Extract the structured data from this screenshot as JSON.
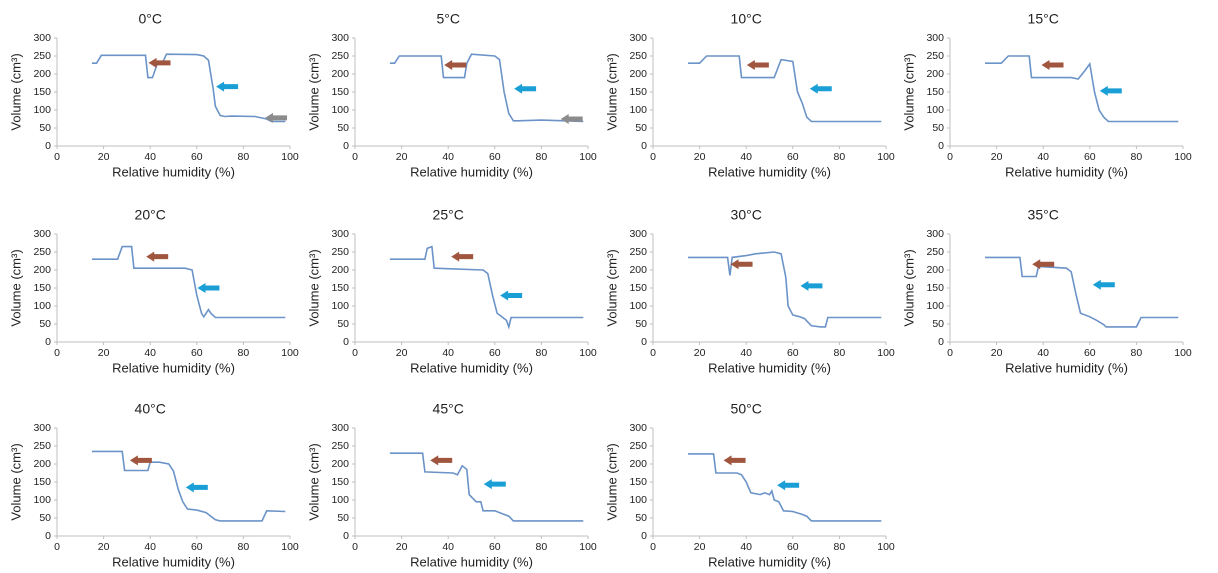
{
  "chart_data": [
    {
      "type": "line",
      "title": "0°C",
      "x_label": "Relative humidity (%)",
      "y_label": "Volume (cm³)",
      "xlim": [
        0,
        100
      ],
      "ylim": [
        0,
        300
      ],
      "xticks": [
        0,
        20,
        40,
        60,
        80,
        100
      ],
      "yticks": [
        0,
        50,
        100,
        150,
        200,
        250,
        300
      ],
      "x": [
        15,
        17,
        19,
        38,
        39,
        41,
        43,
        45,
        47,
        60,
        63,
        65,
        67,
        68,
        70,
        72,
        75,
        85,
        90,
        92,
        98
      ],
      "series": [
        {
          "color": "#6b93c8",
          "values": [
            230,
            230,
            252,
            252,
            190,
            190,
            228,
            228,
            255,
            254,
            250,
            238,
            160,
            110,
            85,
            82,
            83,
            82,
            75,
            68,
            68
          ]
        }
      ]
    },
    {
      "type": "line",
      "title": "5°C",
      "x_label": "Relative humidity (%)",
      "y_label": "Volume (cm³)",
      "xlim": [
        0,
        100
      ],
      "ylim": [
        0,
        300
      ],
      "xticks": [
        0,
        20,
        40,
        60,
        80,
        100
      ],
      "yticks": [
        0,
        50,
        100,
        150,
        200,
        250,
        300
      ],
      "x": [
        15,
        17,
        19,
        37,
        38,
        47,
        48,
        50,
        60,
        62,
        64,
        66,
        68,
        70,
        80,
        90,
        98
      ],
      "series": [
        {
          "color": "#6b93c8",
          "values": [
            230,
            230,
            250,
            250,
            190,
            190,
            230,
            255,
            250,
            240,
            150,
            90,
            70,
            70,
            72,
            70,
            68
          ]
        }
      ]
    },
    {
      "type": "line",
      "title": "10°C",
      "x_label": "Relative humidity (%)",
      "y_label": "Volume (cm³)",
      "xlim": [
        0,
        100
      ],
      "ylim": [
        0,
        300
      ],
      "xticks": [
        0,
        20,
        40,
        60,
        80,
        100
      ],
      "yticks": [
        0,
        50,
        100,
        150,
        200,
        250,
        300
      ],
      "x": [
        15,
        20,
        23,
        37,
        38,
        52,
        55,
        60,
        62,
        64,
        66,
        68,
        98
      ],
      "series": [
        {
          "color": "#6b93c8",
          "values": [
            230,
            230,
            250,
            250,
            190,
            190,
            240,
            235,
            150,
            120,
            80,
            68,
            68
          ]
        }
      ]
    },
    {
      "type": "line",
      "title": "15°C",
      "x_label": "Relative humidity (%)",
      "y_label": "Volume (cm³)",
      "xlim": [
        0,
        100
      ],
      "ylim": [
        0,
        300
      ],
      "xticks": [
        0,
        20,
        40,
        60,
        80,
        100
      ],
      "yticks": [
        0,
        50,
        100,
        150,
        200,
        250,
        300
      ],
      "x": [
        15,
        22,
        25,
        34,
        35,
        52,
        55,
        58,
        60,
        62,
        64,
        66,
        68,
        98
      ],
      "series": [
        {
          "color": "#6b93c8",
          "values": [
            230,
            230,
            250,
            250,
            190,
            190,
            186,
            210,
            228,
            150,
            100,
            80,
            68,
            68
          ]
        }
      ]
    },
    {
      "type": "line",
      "title": "20°C",
      "x_label": "Relative humidity (%)",
      "y_label": "Volume (cm³)",
      "xlim": [
        0,
        100
      ],
      "ylim": [
        0,
        300
      ],
      "xticks": [
        0,
        20,
        40,
        60,
        80,
        100
      ],
      "yticks": [
        0,
        50,
        100,
        150,
        200,
        250,
        300
      ],
      "x": [
        15,
        26,
        28,
        32,
        33,
        55,
        58,
        60,
        62,
        63,
        65,
        66,
        68,
        98
      ],
      "series": [
        {
          "color": "#6b93c8",
          "values": [
            230,
            230,
            265,
            265,
            205,
            205,
            200,
            130,
            80,
            70,
            90,
            80,
            68,
            68
          ]
        }
      ]
    },
    {
      "type": "line",
      "title": "25°C",
      "x_label": "Relative humidity (%)",
      "y_label": "Volume (cm³)",
      "xlim": [
        0,
        100
      ],
      "ylim": [
        0,
        300
      ],
      "xticks": [
        0,
        20,
        40,
        60,
        80,
        100
      ],
      "yticks": [
        0,
        50,
        100,
        150,
        200,
        250,
        300
      ],
      "x": [
        15,
        30,
        31,
        33,
        34,
        55,
        57,
        59,
        61,
        63,
        65,
        66,
        67,
        98
      ],
      "series": [
        {
          "color": "#6b93c8",
          "values": [
            230,
            230,
            260,
            265,
            205,
            200,
            190,
            130,
            80,
            70,
            60,
            42,
            68,
            68
          ]
        }
      ]
    },
    {
      "type": "line",
      "title": "30°C",
      "x_label": "Relative humidity (%)",
      "y_label": "Volume (cm³)",
      "xlim": [
        0,
        100
      ],
      "ylim": [
        0,
        300
      ],
      "xticks": [
        0,
        20,
        40,
        60,
        80,
        100
      ],
      "yticks": [
        0,
        50,
        100,
        150,
        200,
        250,
        300
      ],
      "x": [
        15,
        32,
        33,
        34,
        40,
        44,
        52,
        55,
        57,
        58,
        60,
        63,
        65,
        68,
        72,
        74,
        75,
        98
      ],
      "series": [
        {
          "color": "#6b93c8",
          "values": [
            235,
            235,
            185,
            235,
            240,
            245,
            250,
            245,
            180,
            100,
            75,
            70,
            65,
            45,
            42,
            42,
            68,
            68
          ]
        }
      ]
    },
    {
      "type": "line",
      "title": "35°C",
      "x_label": "Relative humidity (%)",
      "y_label": "Volume (cm³)",
      "xlim": [
        0,
        100
      ],
      "ylim": [
        0,
        300
      ],
      "xticks": [
        0,
        20,
        40,
        60,
        80,
        100
      ],
      "yticks": [
        0,
        50,
        100,
        150,
        200,
        250,
        300
      ],
      "x": [
        15,
        30,
        31,
        37,
        38,
        50,
        52,
        54,
        56,
        60,
        63,
        66,
        67,
        70,
        80,
        82,
        98
      ],
      "series": [
        {
          "color": "#6b93c8",
          "values": [
            235,
            235,
            182,
            182,
            210,
            205,
            195,
            135,
            80,
            70,
            60,
            48,
            42,
            42,
            42,
            68,
            68
          ]
        }
      ]
    },
    {
      "type": "line",
      "title": "40°C",
      "x_label": "Relative humidity (%)",
      "y_label": "Volume (cm³)",
      "xlim": [
        0,
        100
      ],
      "ylim": [
        0,
        300
      ],
      "xticks": [
        0,
        20,
        40,
        60,
        80,
        100
      ],
      "yticks": [
        0,
        50,
        100,
        150,
        200,
        250,
        300
      ],
      "x": [
        15,
        28,
        29,
        39,
        40,
        44,
        48,
        50,
        52,
        54,
        56,
        60,
        64,
        66,
        68,
        70,
        88,
        90,
        98
      ],
      "series": [
        {
          "color": "#6b93c8",
          "values": [
            235,
            235,
            182,
            182,
            205,
            205,
            200,
            180,
            130,
            95,
            75,
            72,
            65,
            55,
            45,
            42,
            42,
            70,
            68
          ]
        }
      ]
    },
    {
      "type": "line",
      "title": "45°C",
      "x_label": "Relative humidity (%)",
      "y_label": "Volume (cm³)",
      "xlim": [
        0,
        100
      ],
      "ylim": [
        0,
        300
      ],
      "xticks": [
        0,
        20,
        40,
        60,
        80,
        100
      ],
      "yticks": [
        0,
        50,
        100,
        150,
        200,
        250,
        300
      ],
      "x": [
        15,
        29,
        30,
        42,
        44,
        46,
        48,
        49,
        52,
        54,
        55,
        60,
        64,
        66,
        68,
        98
      ],
      "series": [
        {
          "color": "#6b93c8",
          "values": [
            230,
            230,
            178,
            175,
            170,
            195,
            185,
            115,
            95,
            95,
            70,
            70,
            60,
            55,
            42,
            42
          ]
        }
      ]
    },
    {
      "type": "line",
      "title": "50°C",
      "x_label": "Relative humidity (%)",
      "y_label": "Volume (cm³)",
      "xlim": [
        0,
        100
      ],
      "ylim": [
        0,
        300
      ],
      "xticks": [
        0,
        20,
        40,
        60,
        80,
        100
      ],
      "yticks": [
        0,
        50,
        100,
        150,
        200,
        250,
        300
      ],
      "x": [
        15,
        26,
        27,
        36,
        38,
        40,
        42,
        46,
        48,
        50,
        51,
        52,
        54,
        56,
        60,
        64,
        66,
        68,
        98
      ],
      "series": [
        {
          "color": "#6b93c8",
          "values": [
            228,
            228,
            175,
            175,
            170,
            150,
            120,
            115,
            120,
            115,
            125,
            100,
            95,
            70,
            68,
            60,
            55,
            42,
            42
          ]
        }
      ]
    }
  ]
}
